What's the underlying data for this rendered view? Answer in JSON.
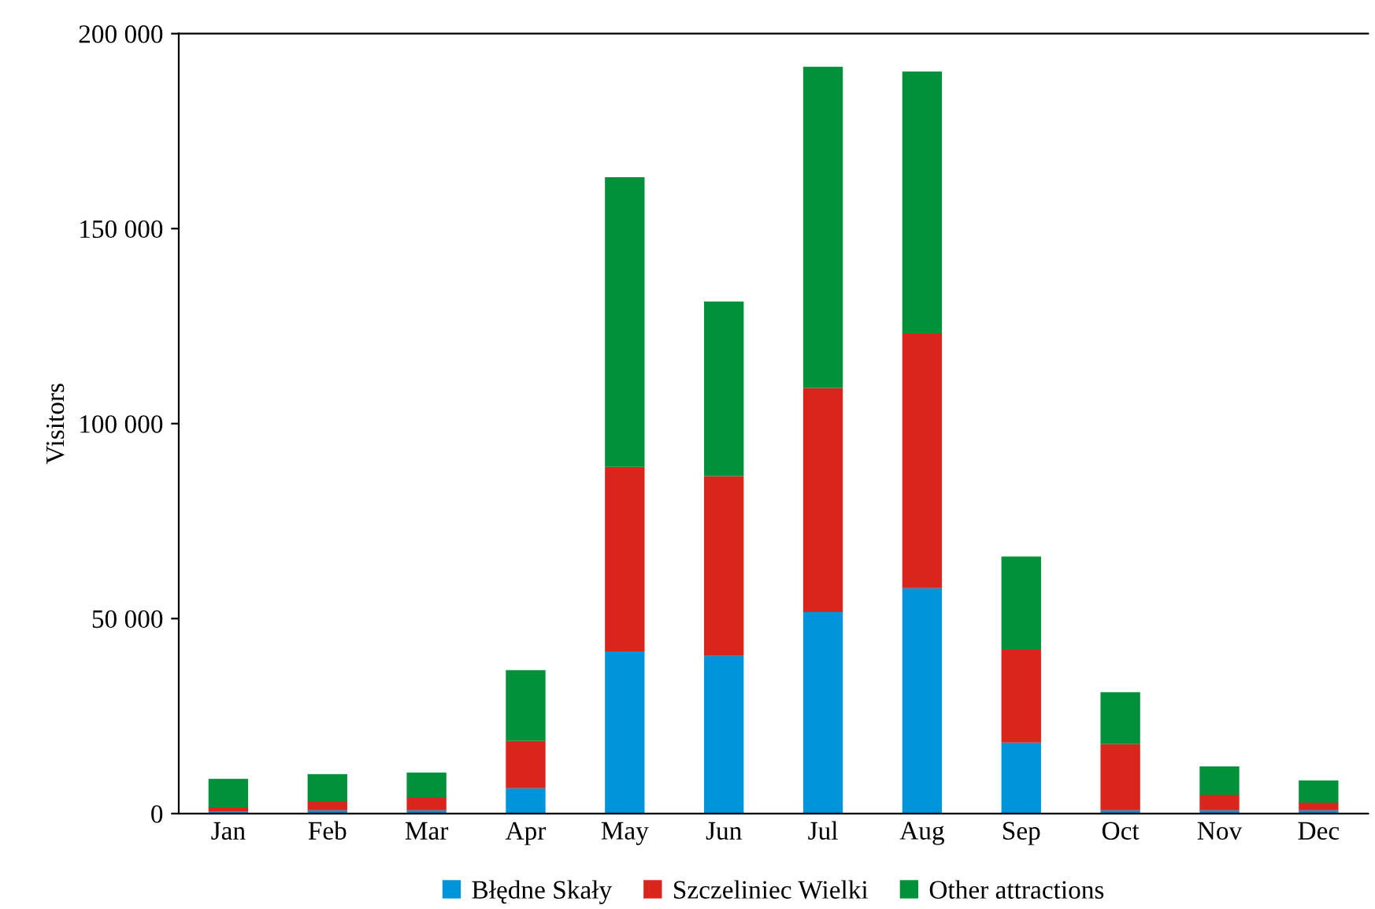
{
  "chart_data": {
    "type": "bar",
    "stacked": true,
    "ylabel": "Visitors",
    "categories": [
      "Jan",
      "Feb",
      "Mar",
      "Apr",
      "May",
      "Jun",
      "Jul",
      "Aug",
      "Sep",
      "Oct",
      "Nov",
      "Dec"
    ],
    "series": [
      {
        "name": "Błędne Skały",
        "color": "#0095da",
        "values": [
          500,
          800,
          800,
          6500,
          41600,
          40400,
          51700,
          57800,
          18200,
          800,
          800,
          800
        ]
      },
      {
        "name": "Szczeliniec Wielki",
        "color": "#da251c",
        "values": [
          1100,
          2400,
          3200,
          12100,
          47300,
          46100,
          57400,
          65400,
          23800,
          17000,
          4000,
          2000
        ]
      },
      {
        "name": "Other attractions",
        "color": "#00913a",
        "values": [
          7300,
          6900,
          6500,
          18200,
          74300,
          44800,
          82400,
          67100,
          23900,
          13300,
          7300,
          5700
        ]
      }
    ],
    "ylim": [
      0,
      200000
    ],
    "yticks": [
      {
        "value": 0,
        "label": "0"
      },
      {
        "value": 50000,
        "label": "50 000"
      },
      {
        "value": 100000,
        "label": "100 000"
      },
      {
        "value": 150000,
        "label": "150 000"
      },
      {
        "value": 200000,
        "label": "200 000"
      }
    ],
    "grid": false,
    "legend": "bottom"
  }
}
